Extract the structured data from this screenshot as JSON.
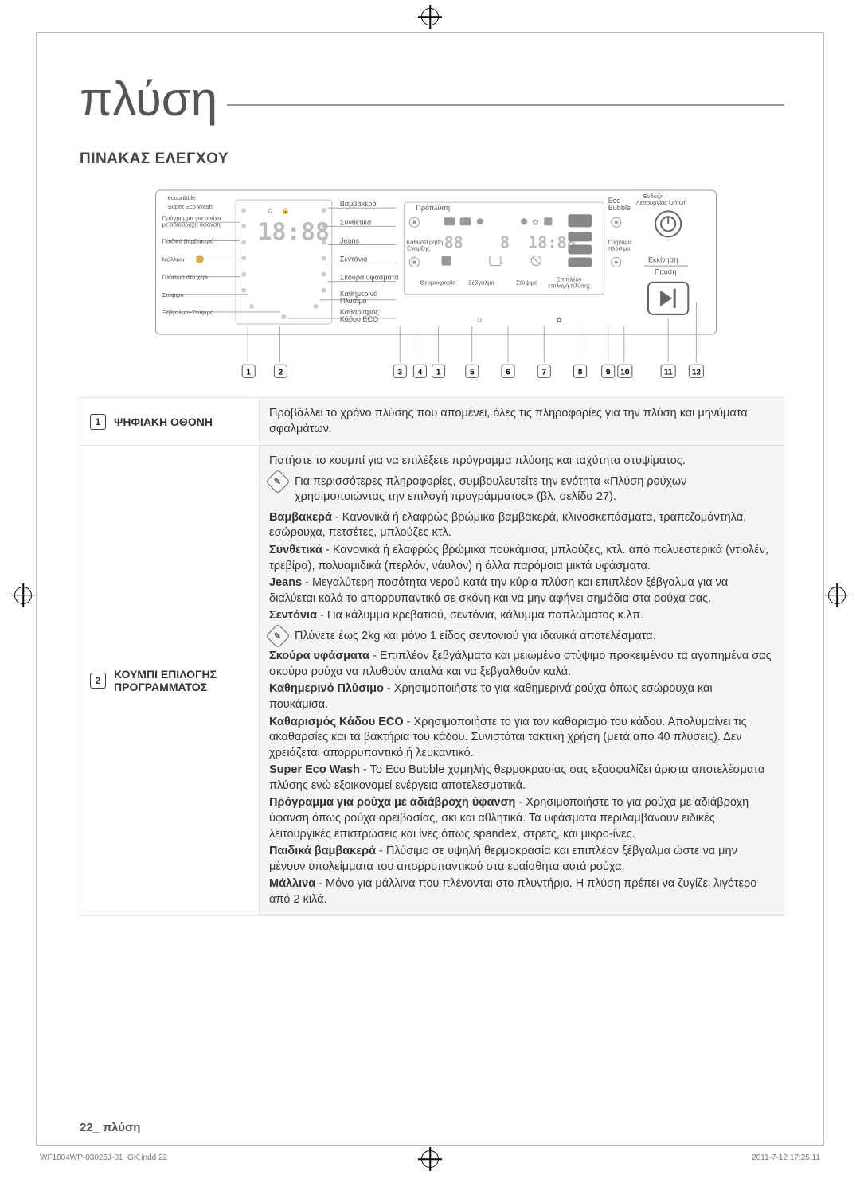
{
  "page": {
    "title": "πλύση",
    "subtitle": "ΠΙΝΑΚΑΣ ΕΛΕΓΧΟΥ",
    "footer_page": "22_",
    "footer_label": "πλύση",
    "print_file": "WF1804WP-03025J-01_GK.indd   22",
    "print_time": "2011-7-12   17:25:11"
  },
  "panel": {
    "brand1": "ecobubble",
    "brand2": "Super Eco Wash",
    "left_labels": {
      "l1": "Πρόγραμμα για ρούχα με αδιάβροχη ύφανση",
      "l2": "Παιδικά βαμβακερά",
      "l3": "Μάλλινα",
      "l4": "Πλύσιμο στο χέρι",
      "l5": "Στύψιμο",
      "l6": "Ξέβγαλμα+Στύψιμο"
    },
    "dial_right": {
      "r1": "Βαμβακερά",
      "r2": "Συνθετικά",
      "r3": "Jeans",
      "r4": "Σεντόνια",
      "r5": "Σκούρα υφάσματα",
      "r6": "Καθημερινό Πλύσιμο",
      "r7": "Καθαρισμός Κάδου ECO"
    },
    "center": {
      "prewash": "Πρόπλυση",
      "delay_top": "Καθυστέρηση",
      "delay_bot": "Έναρξης",
      "temp": "Θερμοκρασία",
      "rinse": "Ξέβγαλμα",
      "spin": "Στύψιμο",
      "extra_top": "Επιπλέον",
      "extra_bot": "επιλογή πλύσης"
    },
    "right": {
      "eco_top": "Eco",
      "eco_bot": "Bubble",
      "onoff_top": "Ένδειξη",
      "onoff_bot": "Λειτουργίας On-Off",
      "fast_top": "Γρήγορο",
      "fast_bot": "πλύσιμο",
      "start_top": "Εκκίνηση",
      "start_bot": "Παύση"
    },
    "digits": "18:88",
    "digits2": "88",
    "digits3": "8",
    "digits4": "18:88",
    "callouts": [
      "1",
      "2",
      "3",
      "4",
      "1",
      "5",
      "6",
      "7",
      "8",
      "9",
      "10",
      "11",
      "12"
    ]
  },
  "rows": [
    {
      "num": "1",
      "label": "ΨΗΦΙΑΚΗ ΟΘΟΝΗ",
      "body": "<p>Προβάλλει το χρόνο πλύσης που απομένει, όλες τις πληροφορίες για την πλύση και μηνύματα σφαλμάτων.</p>"
    },
    {
      "num": "2",
      "label": "ΚΟΥΜΠΙ ΕΠΙΛΟΓΗΣ ΠΡΟΓΡΑΜΜΑΤΟΣ",
      "body": "<p>Πατήστε το κουμπί για να επιλέξετε πρόγραμμα πλύσης και ταχύτητα στυψίματος.</p><div class='note-row'><div class='note-icon' data-name='note-icon' data-interactable='false'><span>✎</span></div><p>Για περισσότερες πληροφορίες, συμβουλευτείτε την ενότητα «Πλύση ρούχων χρησιμοποιώντας την επιλογή προγράμματος» (βλ. σελίδα 27).</p></div><p><b>Βαμβακερά</b> - Κανονικά ή ελαφρώς βρώμικα βαμβακερά, κλινοσκεπάσματα, τραπεζομάντηλα, εσώρουχα, πετσέτες, μπλούζες κτλ.</p><p><b>Συνθετικά</b> - Κανονικά ή ελαφρώς βρώμικα πουκάμισα, μπλούζες, κτλ. από πολυεστερικά (ντιολέν, τρεβίρα), πολυαμιδικά (περλόν, νάυλον) ή άλλα παρόμοια μικτά υφάσματα.</p><p><b>Jeans</b> - Μεγαλύτερη ποσότητα νερού κατά την κύρια πλύση και επιπλέον ξέβγαλμα για να διαλύεται καλά το απορρυπαντικό σε σκόνη και να μην αφήνει σημάδια στα ρούχα σας.</p><p><b>Σεντόνια</b> - Για κάλυμμα κρεβατιού, σεντόνια, κάλυμμα παπλώματος κ.λπ.</p><div class='note-row'><div class='note-icon' data-name='note-icon' data-interactable='false'><span>✎</span></div><p>Πλύνετε έως 2kg και μόνο 1 είδος σεντονιού για ιδανικά αποτελέσματα.</p></div><p><b>Σκούρα υφάσματα</b> - Επιπλέον ξεβγάλματα και μειωμένο στύψιμο προκειμένου τα αγαπημένα σας σκούρα ρούχα να πλυθούν απαλά και να ξεβγαλθούν καλά.</p><p><b>Καθημερινό Πλύσιμο</b> - Χρησιμοποιήστε το για καθημερινά ρούχα όπως εσώρουχα και πουκάμισα.</p><p><b>Καθαρισμός Κάδου ECO</b> - Χρησιμοποιήστε το για τον καθαρισμό του κάδου. Απολυμαίνει τις ακαθαρσίες και τα βακτήρια του κάδου. Συνιστάται τακτική χρήση (μετά από 40 πλύσεις). Δεν χρειάζεται απορρυπαντικό ή λευκαντικό.</p><p><b>Super Eco Wash</b> - Το Eco Bubble χαμηλής θερμοκρασίας σας εξασφαλίζει άριστα αποτελέσματα πλύσης ενώ εξοικονομεί ενέργεια αποτελεσματικά.</p><p><b>Πρόγραμμα για ρούχα με αδιάβροχη ύφανση</b> - Χρησιμοποιήστε το για ρούχα με αδιάβροχη ύφανση όπως ρούχα ορειβασίας, σκι και αθλητικά. Τα υφάσματα περιλαμβάνουν ειδικές λειτουργικές επιστρώσεις και ίνες όπως spandex, στρετς, και μικρο-ίνες.</p><p><b>Παιδικά βαμβακερά</b> - Πλύσιμο σε υψηλή θερμοκρασία και επιπλέον ξέβγαλμα ώστε να μην μένουν υπολείμματα του απορρυπαντικού στα ευαίσθητα αυτά ρούχα.</p><p><b>Μάλλινα</b> - Μόνο για μάλλινα που πλένονται στο πλυντήριο.  Η πλύση πρέπει να ζυγίζει λιγότερο από 2 κιλά.</p>"
    }
  ],
  "style": {
    "page_bg": "#ffffff",
    "cell_bg": "#f5f5f5",
    "border": "#e2e2e2",
    "text": "#333333",
    "muted": "#555555"
  }
}
